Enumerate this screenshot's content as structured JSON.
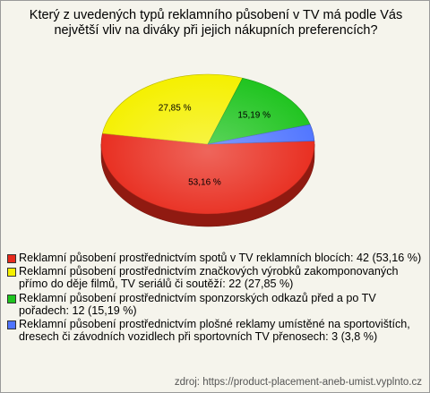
{
  "chart_data": {
    "type": "pie",
    "title": "Který z uvedených typů reklamního působení v TV má podle Vás největší vliv na diváky při jejich nákupních preferencích?",
    "categories": [
      "Reklamní působení prostřednictvím spotů v TV reklamních blocích: 42 (53,16 %)",
      "Reklamní působení prostřednictvím značkových výrobků zakomponovaných přímo do děje filmů, TV seriálů či soutěží: 22 (27,85 %)",
      "Reklamní působení prostřednictvím sponzorských odkazů před a po TV pořadech: 12 (15,19 %)",
      "Reklamní působení prostřednictvím plošné reklamy umístěné na sportovištích, dresech či závodních vozidlech při sportovních TV přenosech: 3 (3,8 %)"
    ],
    "values": [
      53.16,
      27.85,
      15.19,
      3.8
    ],
    "value_labels": [
      "53,16 %",
      "27,85 %",
      "15,19 %",
      null
    ],
    "colors": [
      "#e82a1c",
      "#f5f000",
      "#1fc41f",
      "#4f74ff"
    ],
    "source": "zdroj: https://product-placement-aneb-umist.vyplnto.cz"
  }
}
